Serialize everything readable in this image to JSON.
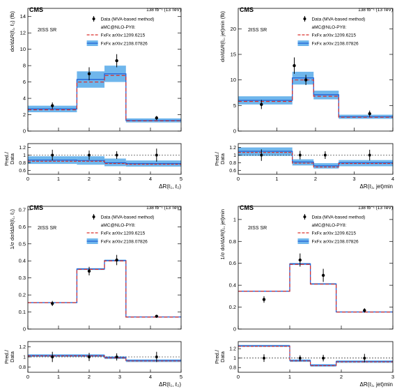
{
  "chart_data": [
    {
      "type": "line",
      "cms_label": "CMS",
      "lumi_label": "138 fb⁻¹ (13 TeV)",
      "region_label": "2ℓSS SR",
      "xlabel": "ΔR(ℓ₁, ℓ₂)",
      "ylabel": "dσ/dΔR(ℓ₁, ℓ₂) (fb)",
      "ratio_ylabel_top": "Pred./",
      "ratio_ylabel_bottom": "Data",
      "xlim": [
        0,
        5
      ],
      "ylim": [
        0,
        15
      ],
      "yticks": [
        0,
        2,
        4,
        6,
        8,
        10,
        12,
        14
      ],
      "xticks": [
        0,
        1,
        2,
        3,
        4,
        5
      ],
      "ratio_ylim": [
        0.5,
        1.3
      ],
      "ratio_yticks": [
        0.6,
        0.8,
        1,
        1.2
      ],
      "legend": {
        "position": "top-right",
        "data": "Data (MVA-based method)",
        "header": "aMC@NLO-PY8:",
        "fxfx1": "FxFx arXiv:1209.6215",
        "fxfx2": "FxFx arXiv:2108.07826"
      },
      "bins": [
        0,
        1.6,
        2.5,
        3.2,
        5
      ],
      "data_points": [
        {
          "x": 0.8,
          "y": 3.1,
          "err": 0.4
        },
        {
          "x": 2.0,
          "y": 7.0,
          "err": 0.8
        },
        {
          "x": 2.9,
          "y": 8.6,
          "err": 0.8
        },
        {
          "x": 4.2,
          "y": 1.6,
          "err": 0.25
        }
      ],
      "pred_1209": [
        2.6,
        6.0,
        6.8,
        1.25
      ],
      "pred_2108": [
        2.7,
        6.3,
        7.0,
        1.3
      ],
      "band_2108": [
        [
          2.3,
          3.1
        ],
        [
          5.3,
          7.3
        ],
        [
          6.0,
          8.0
        ],
        [
          1.05,
          1.55
        ]
      ],
      "ratio_data": [
        {
          "x": 0.8,
          "err": 0.14
        },
        {
          "x": 2.0,
          "err": 0.12
        },
        {
          "x": 2.9,
          "err": 0.1
        },
        {
          "x": 4.2,
          "err": 0.17
        }
      ],
      "ratio_1209": [
        0.84,
        0.84,
        0.78,
        0.76
      ],
      "ratio_2108": [
        0.87,
        0.86,
        0.8,
        0.78
      ],
      "ratio_band": [
        [
          0.77,
          0.97
        ],
        [
          0.75,
          0.97
        ],
        [
          0.71,
          0.91
        ],
        [
          0.7,
          0.86
        ]
      ]
    },
    {
      "type": "line",
      "cms_label": "CMS",
      "lumi_label": "138 fb⁻¹ (13 TeV)",
      "region_label": "2ℓSS SR",
      "xlabel": "ΔR(ℓ₁, jet)min",
      "ylabel": "dσ/dΔR(ℓ₁, jet)min (fb)",
      "ratio_ylabel_top": "Pred./",
      "ratio_ylabel_bottom": "Data",
      "xlim": [
        0,
        4
      ],
      "ylim": [
        0,
        24
      ],
      "yticks": [
        0,
        5,
        10,
        15,
        20
      ],
      "xticks": [
        0,
        1,
        2,
        3,
        4
      ],
      "ratio_ylim": [
        0.5,
        1.3
      ],
      "ratio_yticks": [
        0.6,
        0.8,
        1,
        1.2
      ],
      "legend": {
        "position": "top-right",
        "data": "Data (MVA-based method)",
        "header": "aMC@NLO-PY8:",
        "fxfx1": "FxFx arXiv:1209.6215",
        "fxfx2": "FxFx arXiv:2108.07826"
      },
      "bins": [
        0,
        1.4,
        1.95,
        2.6,
        4
      ],
      "data_points": [
        {
          "x": 0.6,
          "y": 5.2,
          "err": 0.9
        },
        {
          "x": 1.45,
          "y": 12.8,
          "err": 1.6
        },
        {
          "x": 1.75,
          "y": 10.0,
          "err": 1.0
        },
        {
          "x": 3.4,
          "y": 3.4,
          "err": 0.6
        }
      ],
      "pred_1209": [
        5.8,
        10.0,
        6.8,
        2.7
      ],
      "pred_2108": [
        6.0,
        10.4,
        7.1,
        2.8
      ],
      "band_2108": [
        [
          5.2,
          6.8
        ],
        [
          9.1,
          11.6
        ],
        [
          6.2,
          7.9
        ],
        [
          2.4,
          3.2
        ]
      ],
      "ratio_data": [
        {
          "x": 0.6,
          "err": 0.15
        },
        {
          "x": 1.6,
          "err": 0.11
        },
        {
          "x": 2.25,
          "err": 0.1
        },
        {
          "x": 3.4,
          "err": 0.14
        }
      ],
      "ratio_1209": [
        1.07,
        0.79,
        0.69,
        0.78
      ],
      "ratio_2108": [
        1.1,
        0.82,
        0.72,
        0.8
      ],
      "ratio_band": [
        [
          0.98,
          1.2
        ],
        [
          0.73,
          0.89
        ],
        [
          0.65,
          0.79
        ],
        [
          0.71,
          0.87
        ]
      ]
    },
    {
      "type": "line",
      "cms_label": "CMS",
      "lumi_label": "138 fb⁻¹ (13 TeV)",
      "region_label": "2ℓSS SR",
      "xlabel": "ΔR(ℓ₁, ℓ₂)",
      "ylabel": "1/σ dσ/dΔR(ℓ₁, ℓ₂)",
      "ratio_ylabel_top": "Pred./",
      "ratio_ylabel_bottom": "Data",
      "xlim": [
        0,
        5
      ],
      "ylim": [
        0,
        0.72
      ],
      "yticks": [
        0,
        0.1,
        0.2,
        0.3,
        0.4,
        0.5,
        0.6,
        0.7
      ],
      "xticks": [
        0,
        1,
        2,
        3,
        4,
        5
      ],
      "ratio_ylim": [
        0.7,
        1.3
      ],
      "ratio_yticks": [
        0.8,
        1,
        1.2
      ],
      "legend": {
        "position": "top-right",
        "data": "Data (MVA-based method)",
        "header": "aMC@NLO-PY8:",
        "fxfx1": "FxFx arXiv:1209.6215",
        "fxfx2": "FxFx arXiv:2108.07826"
      },
      "bins": [
        0,
        1.6,
        2.5,
        3.2,
        5
      ],
      "data_points": [
        {
          "x": 0.8,
          "y": 0.15,
          "err": 0.015
        },
        {
          "x": 2.0,
          "y": 0.34,
          "err": 0.025
        },
        {
          "x": 2.9,
          "y": 0.405,
          "err": 0.03
        },
        {
          "x": 4.2,
          "y": 0.075,
          "err": 0.007
        }
      ],
      "pred_1209": [
        0.155,
        0.35,
        0.4,
        0.07
      ],
      "pred_2108": [
        0.155,
        0.352,
        0.402,
        0.071
      ],
      "band_2108": [
        [
          0.153,
          0.158
        ],
        [
          0.347,
          0.357
        ],
        [
          0.397,
          0.407
        ],
        [
          0.069,
          0.073
        ]
      ],
      "ratio_data": [
        {
          "x": 0.8,
          "err": 0.1
        },
        {
          "x": 2.0,
          "err": 0.08
        },
        {
          "x": 2.9,
          "err": 0.07
        },
        {
          "x": 4.2,
          "err": 0.1
        }
      ],
      "ratio_1209": [
        1.02,
        1.02,
        0.98,
        0.92
      ],
      "ratio_2108": [
        1.03,
        1.03,
        0.99,
        0.93
      ],
      "ratio_band": [
        [
          1.0,
          1.05
        ],
        [
          1.0,
          1.05
        ],
        [
          0.96,
          1.01
        ],
        [
          0.9,
          0.95
        ]
      ]
    },
    {
      "type": "line",
      "cms_label": "CMS",
      "lumi_label": "138 fb⁻¹ (13 TeV)",
      "region_label": "2ℓSS SR",
      "xlabel": "ΔR(ℓ₁, jet)min",
      "ylabel": "1/σ dσ/dΔR(ℓ₁, jet)min",
      "ratio_ylabel_top": "Pred./",
      "ratio_ylabel_bottom": "Data",
      "xlim": [
        0,
        3
      ],
      "ylim": [
        0,
        1.12
      ],
      "yticks": [
        0,
        0.2,
        0.4,
        0.6,
        0.8,
        1
      ],
      "xticks": [
        0,
        1,
        2,
        3
      ],
      "ratio_ylim": [
        0.7,
        1.35
      ],
      "ratio_yticks": [
        0.8,
        1,
        1.2
      ],
      "legend": {
        "position": "top-right",
        "data": "Data (MVA-based method)",
        "header": "aMC@NLO-PY8:",
        "fxfx1": "FxFx arXiv:1209.6215",
        "fxfx2": "FxFx arXiv:2108.07826"
      },
      "bins": [
        0,
        1.0,
        1.4,
        1.9,
        3
      ],
      "data_points": [
        {
          "x": 0.5,
          "y": 0.27,
          "err": 0.03
        },
        {
          "x": 1.2,
          "y": 0.63,
          "err": 0.06
        },
        {
          "x": 1.65,
          "y": 0.49,
          "err": 0.06
        },
        {
          "x": 2.45,
          "y": 0.17,
          "err": 0.02
        }
      ],
      "pred_1209": [
        0.345,
        0.59,
        0.41,
        0.155
      ],
      "pred_2108": [
        0.345,
        0.595,
        0.412,
        0.156
      ],
      "band_2108": [
        [
          0.342,
          0.35
        ],
        [
          0.585,
          0.603
        ],
        [
          0.405,
          0.418
        ],
        [
          0.152,
          0.16
        ]
      ],
      "ratio_data": [
        {
          "x": 0.5,
          "err": 0.08
        },
        {
          "x": 1.2,
          "err": 0.06
        },
        {
          "x": 1.65,
          "err": 0.07
        },
        {
          "x": 2.45,
          "err": 0.09
        }
      ],
      "ratio_1209": [
        1.25,
        0.94,
        0.84,
        0.92
      ],
      "ratio_2108": [
        1.26,
        0.95,
        0.85,
        0.93
      ],
      "ratio_band": [
        [
          1.24,
          1.28
        ],
        [
          0.92,
          0.97
        ],
        [
          0.82,
          0.87
        ],
        [
          0.9,
          0.95
        ]
      ]
    }
  ]
}
